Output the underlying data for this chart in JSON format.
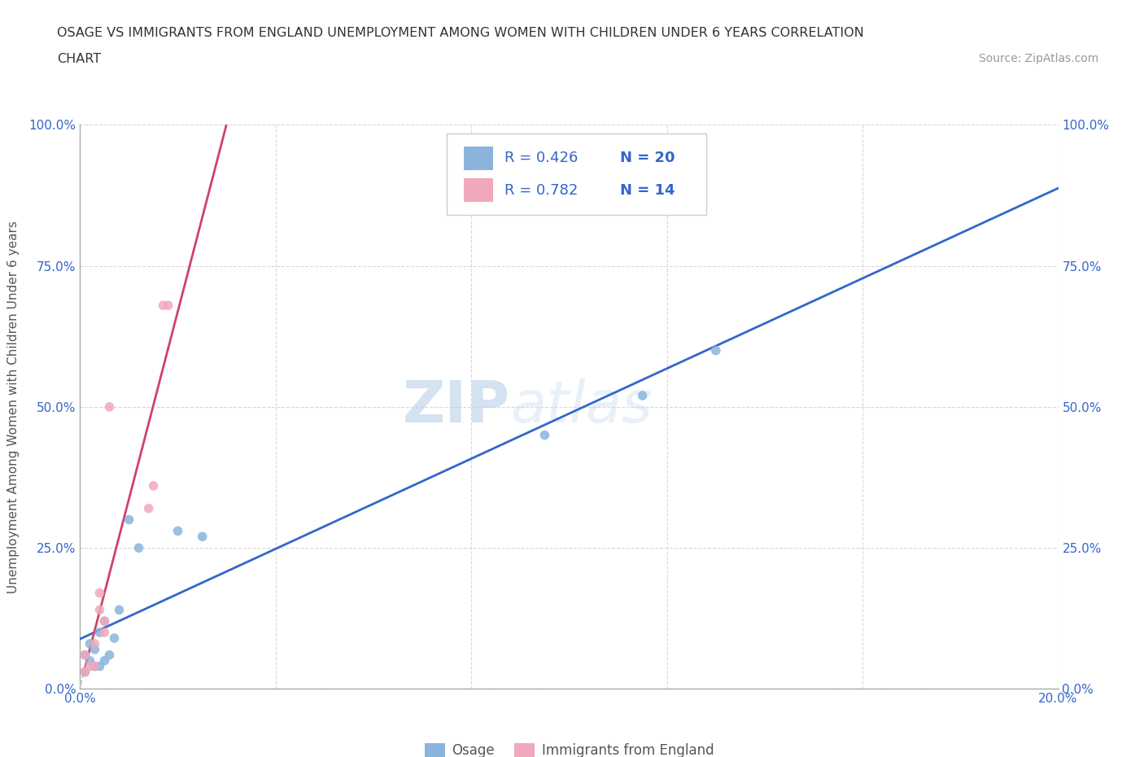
{
  "title_line1": "OSAGE VS IMMIGRANTS FROM ENGLAND UNEMPLOYMENT AMONG WOMEN WITH CHILDREN UNDER 6 YEARS CORRELATION",
  "title_line2": "CHART",
  "source_text": "Source: ZipAtlas.com",
  "ylabel": "Unemployment Among Women with Children Under 6 years",
  "xmin": 0.0,
  "xmax": 0.2,
  "ymin": 0.0,
  "ymax": 1.0,
  "osage_color": "#8ab4dc",
  "england_color": "#f0a8bc",
  "trend_osage_color": "#3366cc",
  "trend_england_color": "#cc4466",
  "trend_dashed_color": "#c0c0c0",
  "legend_text_color": "#3366cc",
  "legend_R_osage": "R = 0.426",
  "legend_N_osage": "N = 20",
  "legend_R_england": "R = 0.782",
  "legend_N_england": "N = 14",
  "osage_x": [
    0.001,
    0.001,
    0.002,
    0.002,
    0.003,
    0.003,
    0.004,
    0.004,
    0.005,
    0.005,
    0.006,
    0.007,
    0.008,
    0.01,
    0.012,
    0.02,
    0.025,
    0.095,
    0.115,
    0.13
  ],
  "osage_y": [
    0.03,
    0.06,
    0.05,
    0.08,
    0.04,
    0.07,
    0.04,
    0.1,
    0.05,
    0.12,
    0.06,
    0.09,
    0.14,
    0.3,
    0.25,
    0.28,
    0.27,
    0.45,
    0.52,
    0.6
  ],
  "england_x": [
    0.001,
    0.001,
    0.002,
    0.003,
    0.003,
    0.004,
    0.004,
    0.005,
    0.005,
    0.006,
    0.014,
    0.015,
    0.017,
    0.018
  ],
  "england_y": [
    0.03,
    0.06,
    0.04,
    0.04,
    0.08,
    0.14,
    0.17,
    0.1,
    0.12,
    0.5,
    0.32,
    0.36,
    0.68,
    0.68
  ],
  "watermark_zip": "ZIP",
  "watermark_atlas": "atlas",
  "background_color": "#ffffff",
  "grid_color": "#d8d8d8",
  "tick_color": "#3366cc",
  "bottom_legend_labels": [
    "Osage",
    "Immigrants from England"
  ]
}
